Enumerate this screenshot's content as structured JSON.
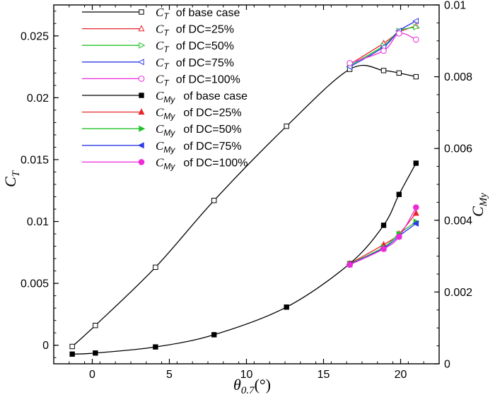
{
  "chart_data": {
    "type": "line",
    "title": "",
    "xlabel": "θ0.7(°)",
    "ylabel_left": "CT",
    "ylabel_right": "CMy",
    "xlim": [
      -2.5,
      22.5
    ],
    "ylim_left": [
      -0.0015,
      0.0275
    ],
    "ylim_right": [
      0,
      0.01
    ],
    "x_ticks": [
      0,
      5,
      10,
      15,
      20
    ],
    "y_ticks_left": [
      0,
      0.005,
      0.01,
      0.015,
      0.02,
      0.025
    ],
    "y_ticks_left_labels": [
      "0",
      "0.005",
      "0.01",
      "0.015",
      "0.02",
      "0.025"
    ],
    "y_ticks_right": [
      0,
      0.002,
      0.004,
      0.006,
      0.008,
      0.01
    ],
    "y_ticks_right_labels": [
      "0",
      "0.002",
      "0.004",
      "0.006",
      "0.008",
      "0.01"
    ],
    "legend_position": "top-left",
    "series": [
      {
        "name": "CT of base case",
        "sym": "C",
        "sub": "T",
        "suffix": "of base case",
        "axis": "left",
        "color": "#000000",
        "marker": "square",
        "filled": false,
        "x": [
          -1.3,
          0.2,
          4.1,
          7.9,
          12.6,
          16.7,
          18.9,
          19.9,
          21.0
        ],
        "y": [
          -0.0001,
          0.0016,
          0.0063,
          0.0117,
          0.0177,
          0.0223,
          0.0222,
          0.022,
          0.0217
        ]
      },
      {
        "name": "CT of DC=25%",
        "sym": "C",
        "sub": "T",
        "suffix": "of  DC=25%",
        "axis": "left",
        "color": "#e8262a",
        "marker": "triangle-up",
        "filled": false,
        "x": [
          16.7,
          18.9,
          19.9,
          21.0
        ],
        "y": [
          0.0227,
          0.0244,
          0.0253,
          0.0258
        ]
      },
      {
        "name": "CT of DC=50%",
        "sym": "C",
        "sub": "T",
        "suffix": "of  DC=50%",
        "axis": "left",
        "color": "#22c32a",
        "marker": "triangle-right",
        "filled": false,
        "x": [
          16.7,
          18.9,
          19.9,
          21.0
        ],
        "y": [
          0.0226,
          0.0242,
          0.0254,
          0.0257
        ]
      },
      {
        "name": "CT of DC=75%",
        "sym": "C",
        "sub": "T",
        "suffix": "of  DC=75%",
        "axis": "left",
        "color": "#2b39e8",
        "marker": "triangle-left",
        "filled": false,
        "x": [
          16.7,
          18.9,
          19.9,
          21.0
        ],
        "y": [
          0.0225,
          0.0241,
          0.0254,
          0.0262
        ]
      },
      {
        "name": "CT of DC=100%",
        "sym": "C",
        "sub": "T",
        "suffix": "of  DC=100%",
        "axis": "left",
        "color": "#ee2bd9",
        "marker": "circle",
        "filled": false,
        "x": [
          16.7,
          18.9,
          19.9,
          21.0
        ],
        "y": [
          0.0228,
          0.0238,
          0.0252,
          0.0247
        ]
      },
      {
        "name": "CMy of base case",
        "sym": "C",
        "sub": "My",
        "suffix": "of base case",
        "axis": "right",
        "color": "#000000",
        "marker": "square",
        "filled": true,
        "x": [
          -1.3,
          0.2,
          4.1,
          7.9,
          12.6,
          16.7,
          18.9,
          19.9,
          21.0
        ],
        "y": [
          0.00027,
          0.0003,
          0.00047,
          0.00081,
          0.00158,
          0.00279,
          0.00386,
          0.00472,
          0.00559
        ]
      },
      {
        "name": "CMy of DC=25%",
        "sym": "C",
        "sub": "My",
        "suffix": "of DC=25%",
        "axis": "right",
        "color": "#e8262a",
        "marker": "triangle-up",
        "filled": true,
        "x": [
          16.7,
          18.9,
          19.9,
          21.0
        ],
        "y": [
          0.00279,
          0.00332,
          0.00362,
          0.0042
        ]
      },
      {
        "name": "CMy of DC=50%",
        "sym": "C",
        "sub": "My",
        "suffix": "of DC=50%",
        "axis": "right",
        "color": "#22c32a",
        "marker": "triangle-right",
        "filled": true,
        "x": [
          16.7,
          18.9,
          19.9,
          21.0
        ],
        "y": [
          0.00278,
          0.00325,
          0.00362,
          0.00396
        ]
      },
      {
        "name": "CMy of DC=75%",
        "sym": "C",
        "sub": "My",
        "suffix": "of DC=75%",
        "axis": "right",
        "color": "#2b39e8",
        "marker": "triangle-left",
        "filled": true,
        "x": [
          16.7,
          18.9,
          19.9,
          21.0
        ],
        "y": [
          0.00277,
          0.00322,
          0.00356,
          0.00391
        ]
      },
      {
        "name": "CMy of DC=100%",
        "sym": "C",
        "sub": "My",
        "suffix": "of DC=100%",
        "axis": "right",
        "color": "#ee2bd9",
        "marker": "circle",
        "filled": true,
        "x": [
          16.7,
          18.9,
          19.9,
          21.0
        ],
        "y": [
          0.00276,
          0.0032,
          0.00354,
          0.00436
        ]
      }
    ]
  },
  "labels": {
    "x_axis_main": "θ",
    "x_axis_sub": "0.7",
    "x_axis_unit": "(°)",
    "y_left_main": "C",
    "y_left_sub": "T",
    "y_right_main": "C",
    "y_right_sub": "My"
  }
}
